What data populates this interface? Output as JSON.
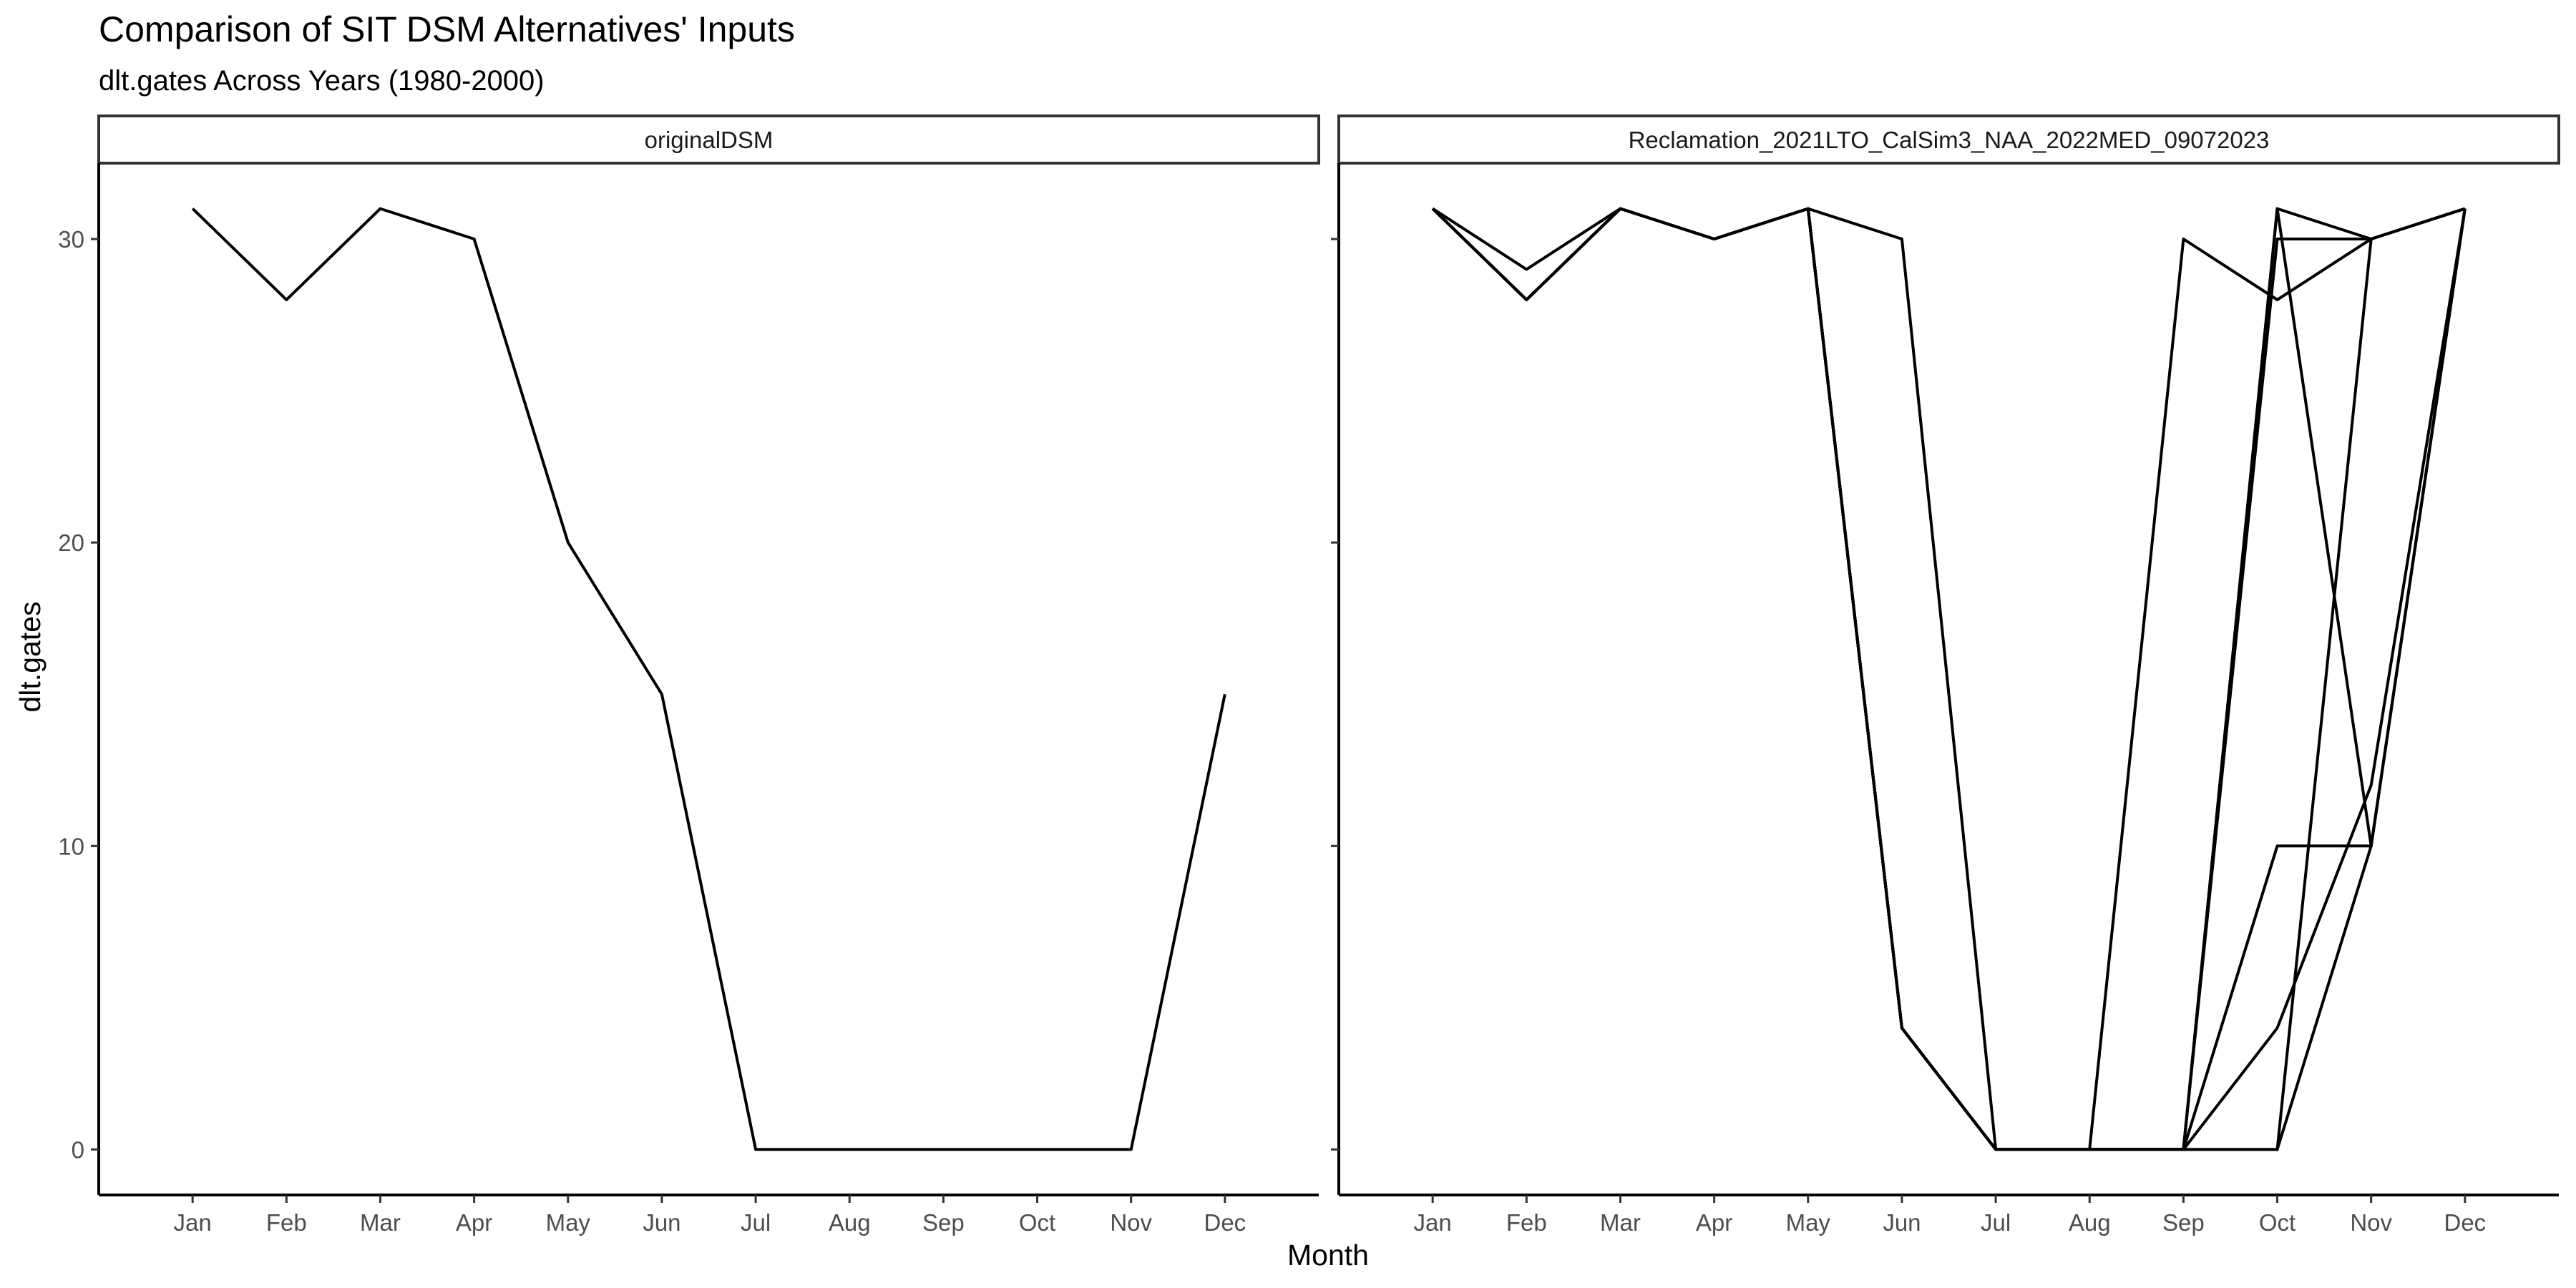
{
  "chart_data": {
    "type": "line",
    "title": "Comparison of SIT DSM Alternatives' Inputs",
    "subtitle": "dlt.gates Across Years (1980-2000)",
    "xlabel": "Month",
    "ylabel": "dlt.gates",
    "categories": [
      "Jan",
      "Feb",
      "Mar",
      "Apr",
      "May",
      "Jun",
      "Jul",
      "Aug",
      "Sep",
      "Oct",
      "Nov",
      "Dec"
    ],
    "y_ticks": [
      0,
      10,
      20,
      30
    ],
    "ylim": [
      -1.5,
      32.5
    ],
    "grid": false,
    "line_color": "#000000",
    "panels": [
      {
        "label": "originalDSM",
        "series": [
          {
            "values": [
              31,
              28,
              31,
              30,
              20,
              15,
              0,
              0,
              0,
              0,
              0,
              15
            ]
          }
        ]
      },
      {
        "label": "Reclamation_2021LTO_CalSim3_NAA_2022MED_09072023",
        "series": [
          {
            "values": [
              31,
              28,
              31,
              30,
              31,
              4,
              0,
              0,
              0,
              31,
              30,
              31
            ]
          },
          {
            "values": [
              31,
              29,
              31,
              30,
              31,
              30,
              0,
              0,
              30,
              28,
              30,
              31
            ]
          },
          {
            "values": [
              31,
              28,
              31,
              30,
              31,
              4,
              0,
              0,
              0,
              30,
              30,
              31
            ]
          },
          {
            "values": [
              31,
              28,
              31,
              30,
              31,
              4,
              0,
              0,
              0,
              0,
              10,
              31
            ]
          },
          {
            "values": [
              31,
              28,
              31,
              30,
              31,
              4,
              0,
              0,
              0,
              31,
              10,
              31
            ]
          },
          {
            "values": [
              31,
              28,
              31,
              30,
              31,
              4,
              0,
              0,
              0,
              10,
              10,
              31
            ]
          },
          {
            "values": [
              31,
              28,
              31,
              30,
              31,
              4,
              0,
              0,
              0,
              4,
              12,
              31
            ]
          },
          {
            "values": [
              31,
              28,
              31,
              30,
              31,
              4,
              0,
              0,
              0,
              0,
              30,
              31
            ]
          }
        ]
      }
    ]
  }
}
